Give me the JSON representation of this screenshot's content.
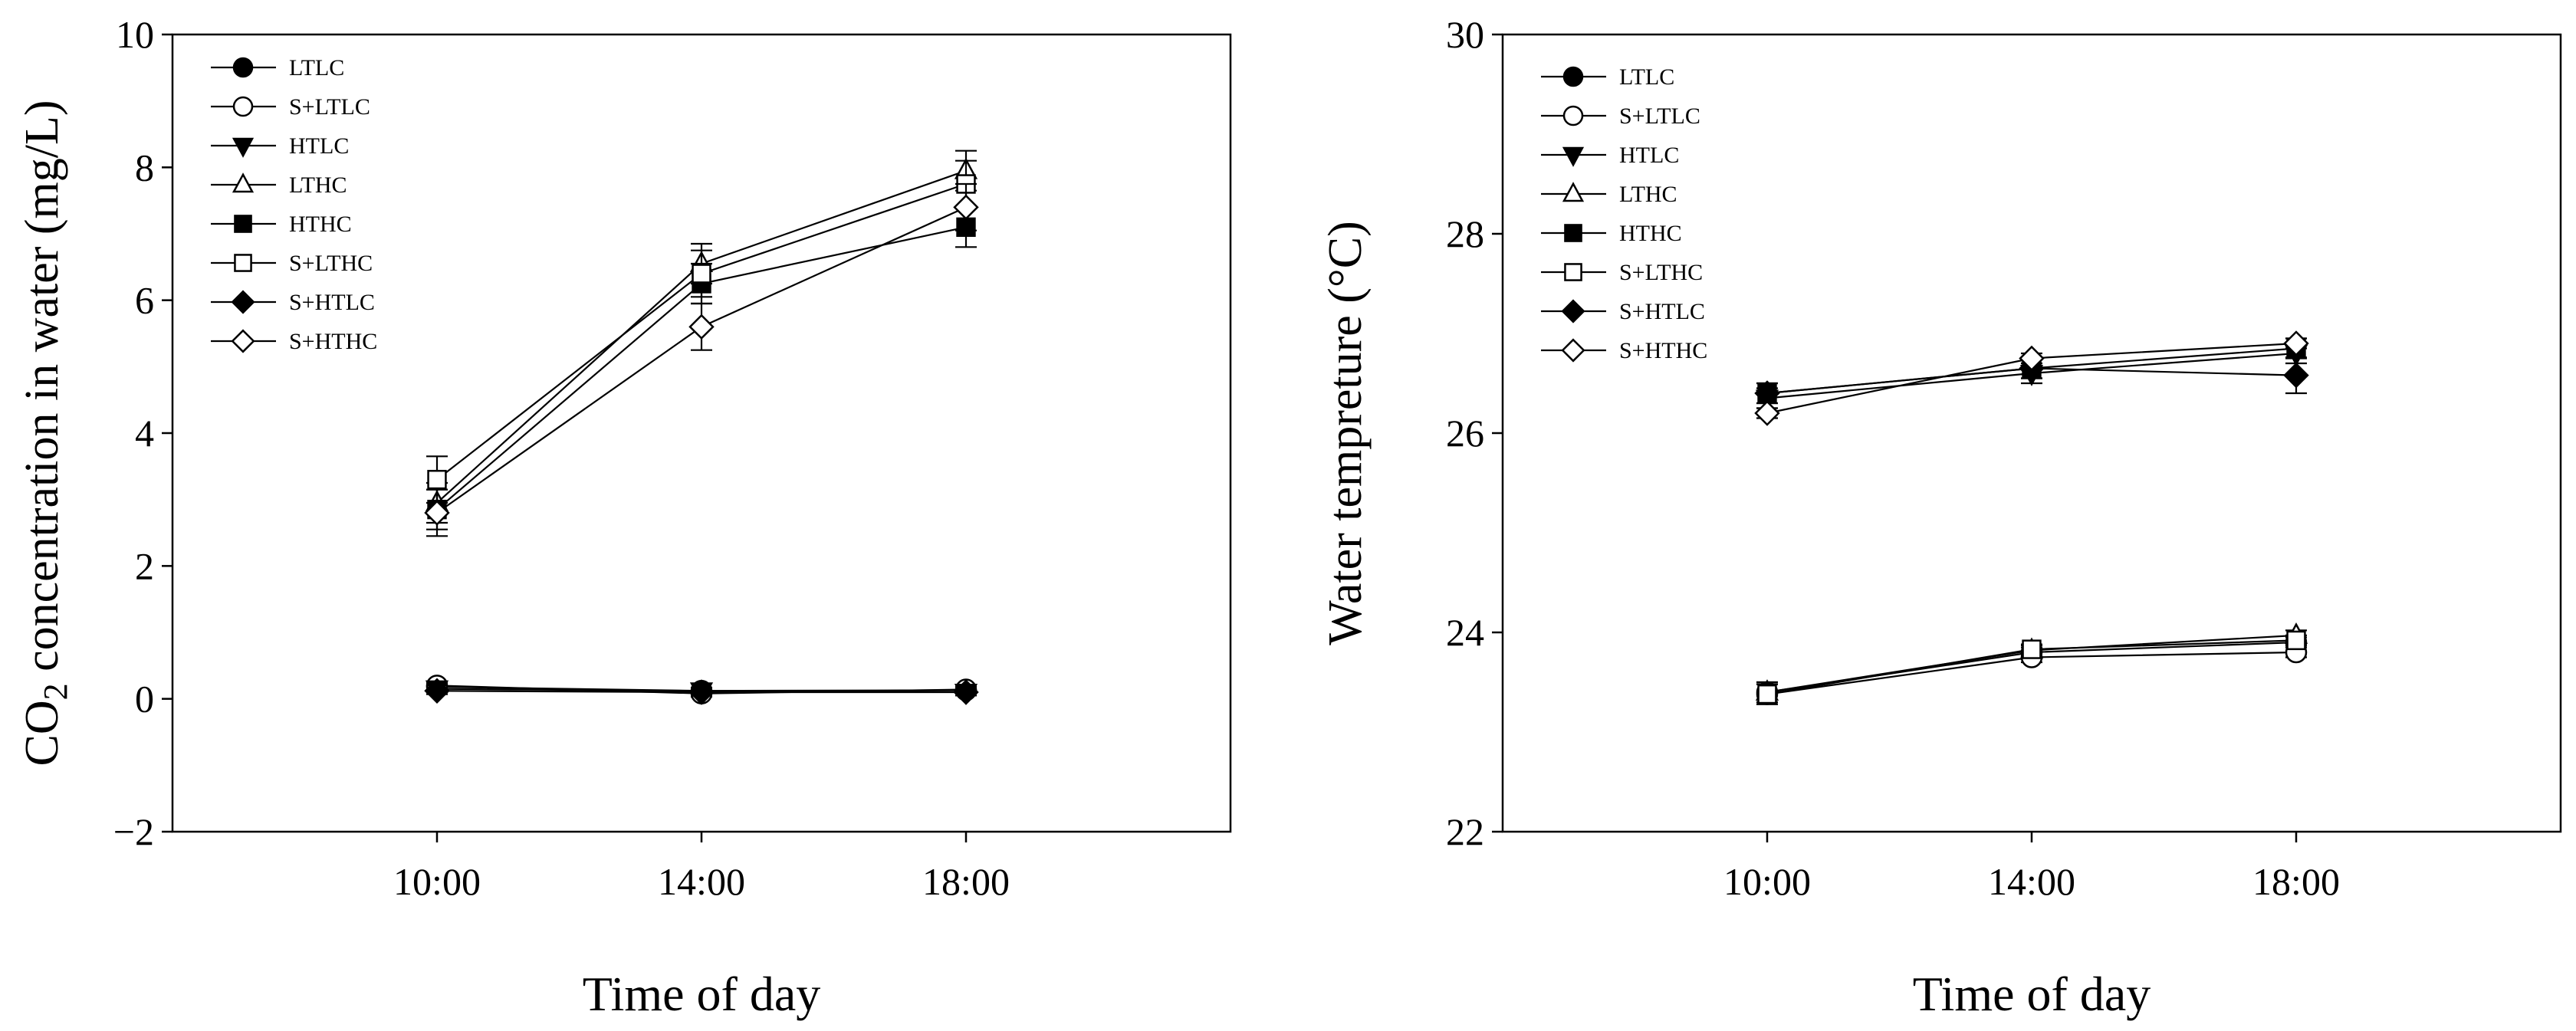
{
  "chart_data": [
    {
      "type": "line",
      "title": "",
      "xlabel": "Time of day",
      "ylabel_main": "CO",
      "ylabel_subscript": "2",
      "ylabel_rest": " concentration in water (mg/L)",
      "ylabel": "CO2 concentration in water (mg/L)",
      "categories": [
        "10:00",
        "14:00",
        "18:00"
      ],
      "x_range": [
        0,
        4
      ],
      "ylim": [
        -2,
        10
      ],
      "yticks": [
        -2,
        0,
        2,
        4,
        6,
        8,
        10
      ],
      "ytick_labels": [
        "−2",
        "0",
        "2",
        "4",
        "6",
        "8",
        "10"
      ],
      "legend_position": "top-left",
      "grid": false,
      "series": [
        {
          "name": "LTLC",
          "marker": "circle",
          "filled": true,
          "values": [
            0.18,
            0.12,
            0.13
          ],
          "errors": [
            0.05,
            0.05,
            0.05
          ]
        },
        {
          "name": "S+LTLC",
          "marker": "circle",
          "filled": false,
          "values": [
            0.2,
            0.08,
            0.14
          ],
          "errors": [
            0.05,
            0.05,
            0.05
          ]
        },
        {
          "name": "HTLC",
          "marker": "triangle-down",
          "filled": true,
          "values": [
            0.15,
            0.12,
            0.1
          ],
          "errors": [
            0.05,
            0.05,
            0.05
          ]
        },
        {
          "name": "LTHC",
          "marker": "triangle-up",
          "filled": false,
          "values": [
            2.95,
            6.55,
            7.95
          ],
          "errors": [
            0.3,
            0.3,
            0.3
          ]
        },
        {
          "name": "HTHC",
          "marker": "square",
          "filled": true,
          "values": [
            2.85,
            6.25,
            7.1
          ],
          "errors": [
            0.3,
            0.3,
            0.3
          ]
        },
        {
          "name": "S+LTHC",
          "marker": "square",
          "filled": false,
          "values": [
            3.3,
            6.4,
            7.75
          ],
          "errors": [
            0.35,
            0.35,
            0.35
          ]
        },
        {
          "name": "S+HTLC",
          "marker": "diamond",
          "filled": true,
          "values": [
            0.12,
            0.1,
            0.1
          ],
          "errors": [
            0.05,
            0.05,
            0.05
          ]
        },
        {
          "name": "S+HTHC",
          "marker": "diamond",
          "filled": false,
          "values": [
            2.8,
            5.6,
            7.4
          ],
          "errors": [
            0.35,
            0.35,
            0.35
          ]
        }
      ]
    },
    {
      "type": "line",
      "title": "",
      "xlabel": "Time of day",
      "ylabel": "Water tempreture (°C)",
      "categories": [
        "10:00",
        "14:00",
        "18:00"
      ],
      "x_range": [
        0,
        4
      ],
      "ylim": [
        22,
        30
      ],
      "yticks": [
        22,
        24,
        26,
        28,
        30
      ],
      "ytick_labels": [
        "22",
        "24",
        "26",
        "28",
        "30"
      ],
      "legend_position": "top-left",
      "grid": false,
      "series": [
        {
          "name": "LTLC",
          "marker": "circle",
          "filled": true,
          "values": [
            23.4,
            23.8,
            23.9
          ],
          "errors": [
            0.1,
            0.05,
            0.05
          ]
        },
        {
          "name": "S+LTLC",
          "marker": "circle",
          "filled": false,
          "values": [
            23.38,
            23.75,
            23.8
          ],
          "errors": [
            0.1,
            0.05,
            0.05
          ]
        },
        {
          "name": "HTLC",
          "marker": "triangle-down",
          "filled": true,
          "values": [
            26.35,
            26.6,
            26.8
          ],
          "errors": [
            0.1,
            0.1,
            0.1
          ]
        },
        {
          "name": "LTHC",
          "marker": "triangle-up",
          "filled": false,
          "values": [
            23.4,
            23.82,
            23.97
          ],
          "errors": [
            0.1,
            0.05,
            0.05
          ]
        },
        {
          "name": "HTHC",
          "marker": "square",
          "filled": true,
          "values": [
            26.4,
            26.65,
            26.85
          ],
          "errors": [
            0.1,
            0.1,
            0.1
          ]
        },
        {
          "name": "S+LTHC",
          "marker": "square",
          "filled": false,
          "values": [
            23.38,
            23.83,
            23.92
          ],
          "errors": [
            0.1,
            0.05,
            0.05
          ]
        },
        {
          "name": "S+HTLC",
          "marker": "diamond",
          "filled": true,
          "values": [
            26.4,
            26.65,
            26.58
          ],
          "errors": [
            0.1,
            0.1,
            0.18
          ]
        },
        {
          "name": "S+HTHC",
          "marker": "diamond",
          "filled": false,
          "values": [
            26.2,
            26.75,
            26.9
          ],
          "errors": [
            0.05,
            0.05,
            0.05
          ]
        }
      ]
    }
  ]
}
